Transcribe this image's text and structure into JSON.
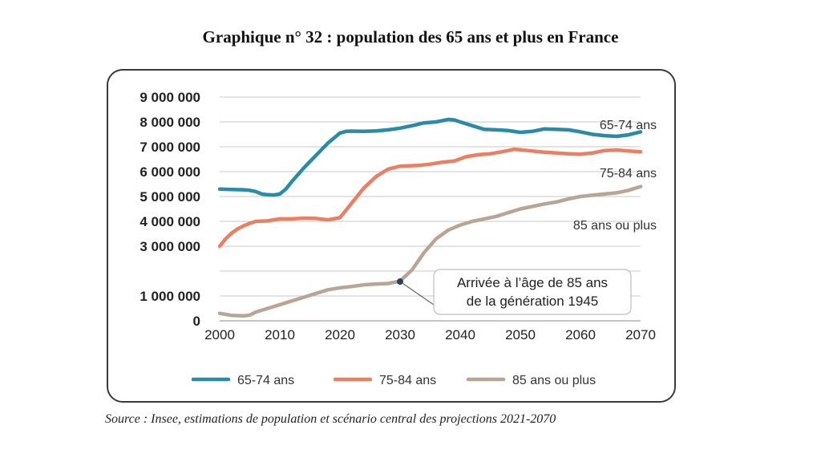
{
  "title": "Graphique n° 32 : population des 65 ans et plus en France",
  "source": "Source : Insee, estimations de population et scénario central des projections 2021-2070",
  "colors": {
    "s65": "#2a8ba6",
    "s75": "#ea7f63",
    "s85": "#b9a595",
    "grid": "#c8c8c8",
    "frame": "#3a3a3a"
  },
  "chart_data": {
    "type": "line",
    "title": "Graphique n° 32 : population des 65 ans et plus en France",
    "xlabel": "",
    "ylabel": "",
    "xlim": [
      2000,
      2070
    ],
    "ylim": [
      0,
      9000000
    ],
    "x_ticks": [
      2000,
      2010,
      2020,
      2030,
      2040,
      2050,
      2060,
      2070
    ],
    "x_tick_labels": [
      "2000",
      "2010",
      "2020",
      "2030",
      "2040",
      "2050",
      "2060",
      "2070"
    ],
    "y_ticks": [
      0,
      1000000,
      2000000,
      3000000,
      4000000,
      5000000,
      6000000,
      7000000,
      8000000,
      9000000
    ],
    "y_tick_labels": [
      "0",
      "1 000 000",
      "",
      "3 000 000",
      "4 000 000",
      "5 000 000",
      "6 000 000",
      "7 000 000",
      "8 000 000",
      "9 000 000"
    ],
    "grid": true,
    "legend_position": "bottom",
    "series": [
      {
        "name": "65-74 ans",
        "end_label": "65-74 ans",
        "color_key": "s65",
        "x": [
          2000,
          2002,
          2004,
          2005,
          2006,
          2007,
          2008,
          2009,
          2010,
          2011,
          2012,
          2014,
          2016,
          2018,
          2020,
          2021,
          2022,
          2024,
          2026,
          2028,
          2030,
          2032,
          2034,
          2036,
          2037,
          2038,
          2039,
          2040,
          2042,
          2044,
          2046,
          2048,
          2050,
          2052,
          2054,
          2056,
          2058,
          2060,
          2062,
          2064,
          2066,
          2068,
          2070
        ],
        "y": [
          5300000,
          5280000,
          5270000,
          5250000,
          5200000,
          5100000,
          5070000,
          5060000,
          5100000,
          5300000,
          5600000,
          6150000,
          6650000,
          7150000,
          7550000,
          7620000,
          7630000,
          7620000,
          7640000,
          7680000,
          7750000,
          7850000,
          7960000,
          8000000,
          8050000,
          8100000,
          8080000,
          8000000,
          7850000,
          7700000,
          7680000,
          7650000,
          7580000,
          7620000,
          7720000,
          7700000,
          7680000,
          7600000,
          7500000,
          7450000,
          7420000,
          7480000,
          7600000
        ]
      },
      {
        "name": "75-84 ans",
        "end_label": "75-84 ans",
        "color_key": "s75",
        "x": [
          2000,
          2001,
          2002,
          2003,
          2004,
          2005,
          2006,
          2008,
          2010,
          2012,
          2014,
          2016,
          2018,
          2020,
          2022,
          2024,
          2026,
          2028,
          2030,
          2031,
          2033,
          2035,
          2037,
          2039,
          2041,
          2043,
          2045,
          2047,
          2049,
          2050,
          2052,
          2054,
          2056,
          2058,
          2060,
          2062,
          2064,
          2066,
          2068,
          2070
        ],
        "y": [
          3000000,
          3300000,
          3530000,
          3700000,
          3820000,
          3920000,
          4000000,
          4020000,
          4100000,
          4100000,
          4130000,
          4120000,
          4060000,
          4150000,
          4750000,
          5350000,
          5800000,
          6100000,
          6220000,
          6230000,
          6250000,
          6300000,
          6380000,
          6430000,
          6600000,
          6680000,
          6720000,
          6800000,
          6900000,
          6880000,
          6830000,
          6780000,
          6750000,
          6720000,
          6700000,
          6750000,
          6850000,
          6870000,
          6830000,
          6800000
        ]
      },
      {
        "name": "85 ans ou plus",
        "end_label": "85 ans ou plus",
        "color_key": "s85",
        "x": [
          2000,
          2002,
          2004,
          2005,
          2006,
          2008,
          2010,
          2012,
          2014,
          2016,
          2018,
          2020,
          2022,
          2024,
          2026,
          2028,
          2030,
          2032,
          2034,
          2036,
          2038,
          2040,
          2042,
          2044,
          2046,
          2048,
          2050,
          2052,
          2054,
          2056,
          2058,
          2060,
          2062,
          2064,
          2066,
          2068,
          2070
        ],
        "y": [
          300000,
          220000,
          200000,
          230000,
          350000,
          500000,
          650000,
          800000,
          950000,
          1100000,
          1250000,
          1330000,
          1380000,
          1450000,
          1480000,
          1500000,
          1600000,
          2050000,
          2750000,
          3300000,
          3650000,
          3850000,
          4000000,
          4100000,
          4200000,
          4350000,
          4500000,
          4600000,
          4700000,
          4780000,
          4900000,
          5000000,
          5050000,
          5100000,
          5150000,
          5250000,
          5400000
        ]
      }
    ],
    "annotations": [
      {
        "text_lines": [
          "Arrivée à l’âge de 85 ans",
          "de la génération 1945"
        ],
        "point_x": 2030,
        "point_y": 1580000
      }
    ]
  }
}
